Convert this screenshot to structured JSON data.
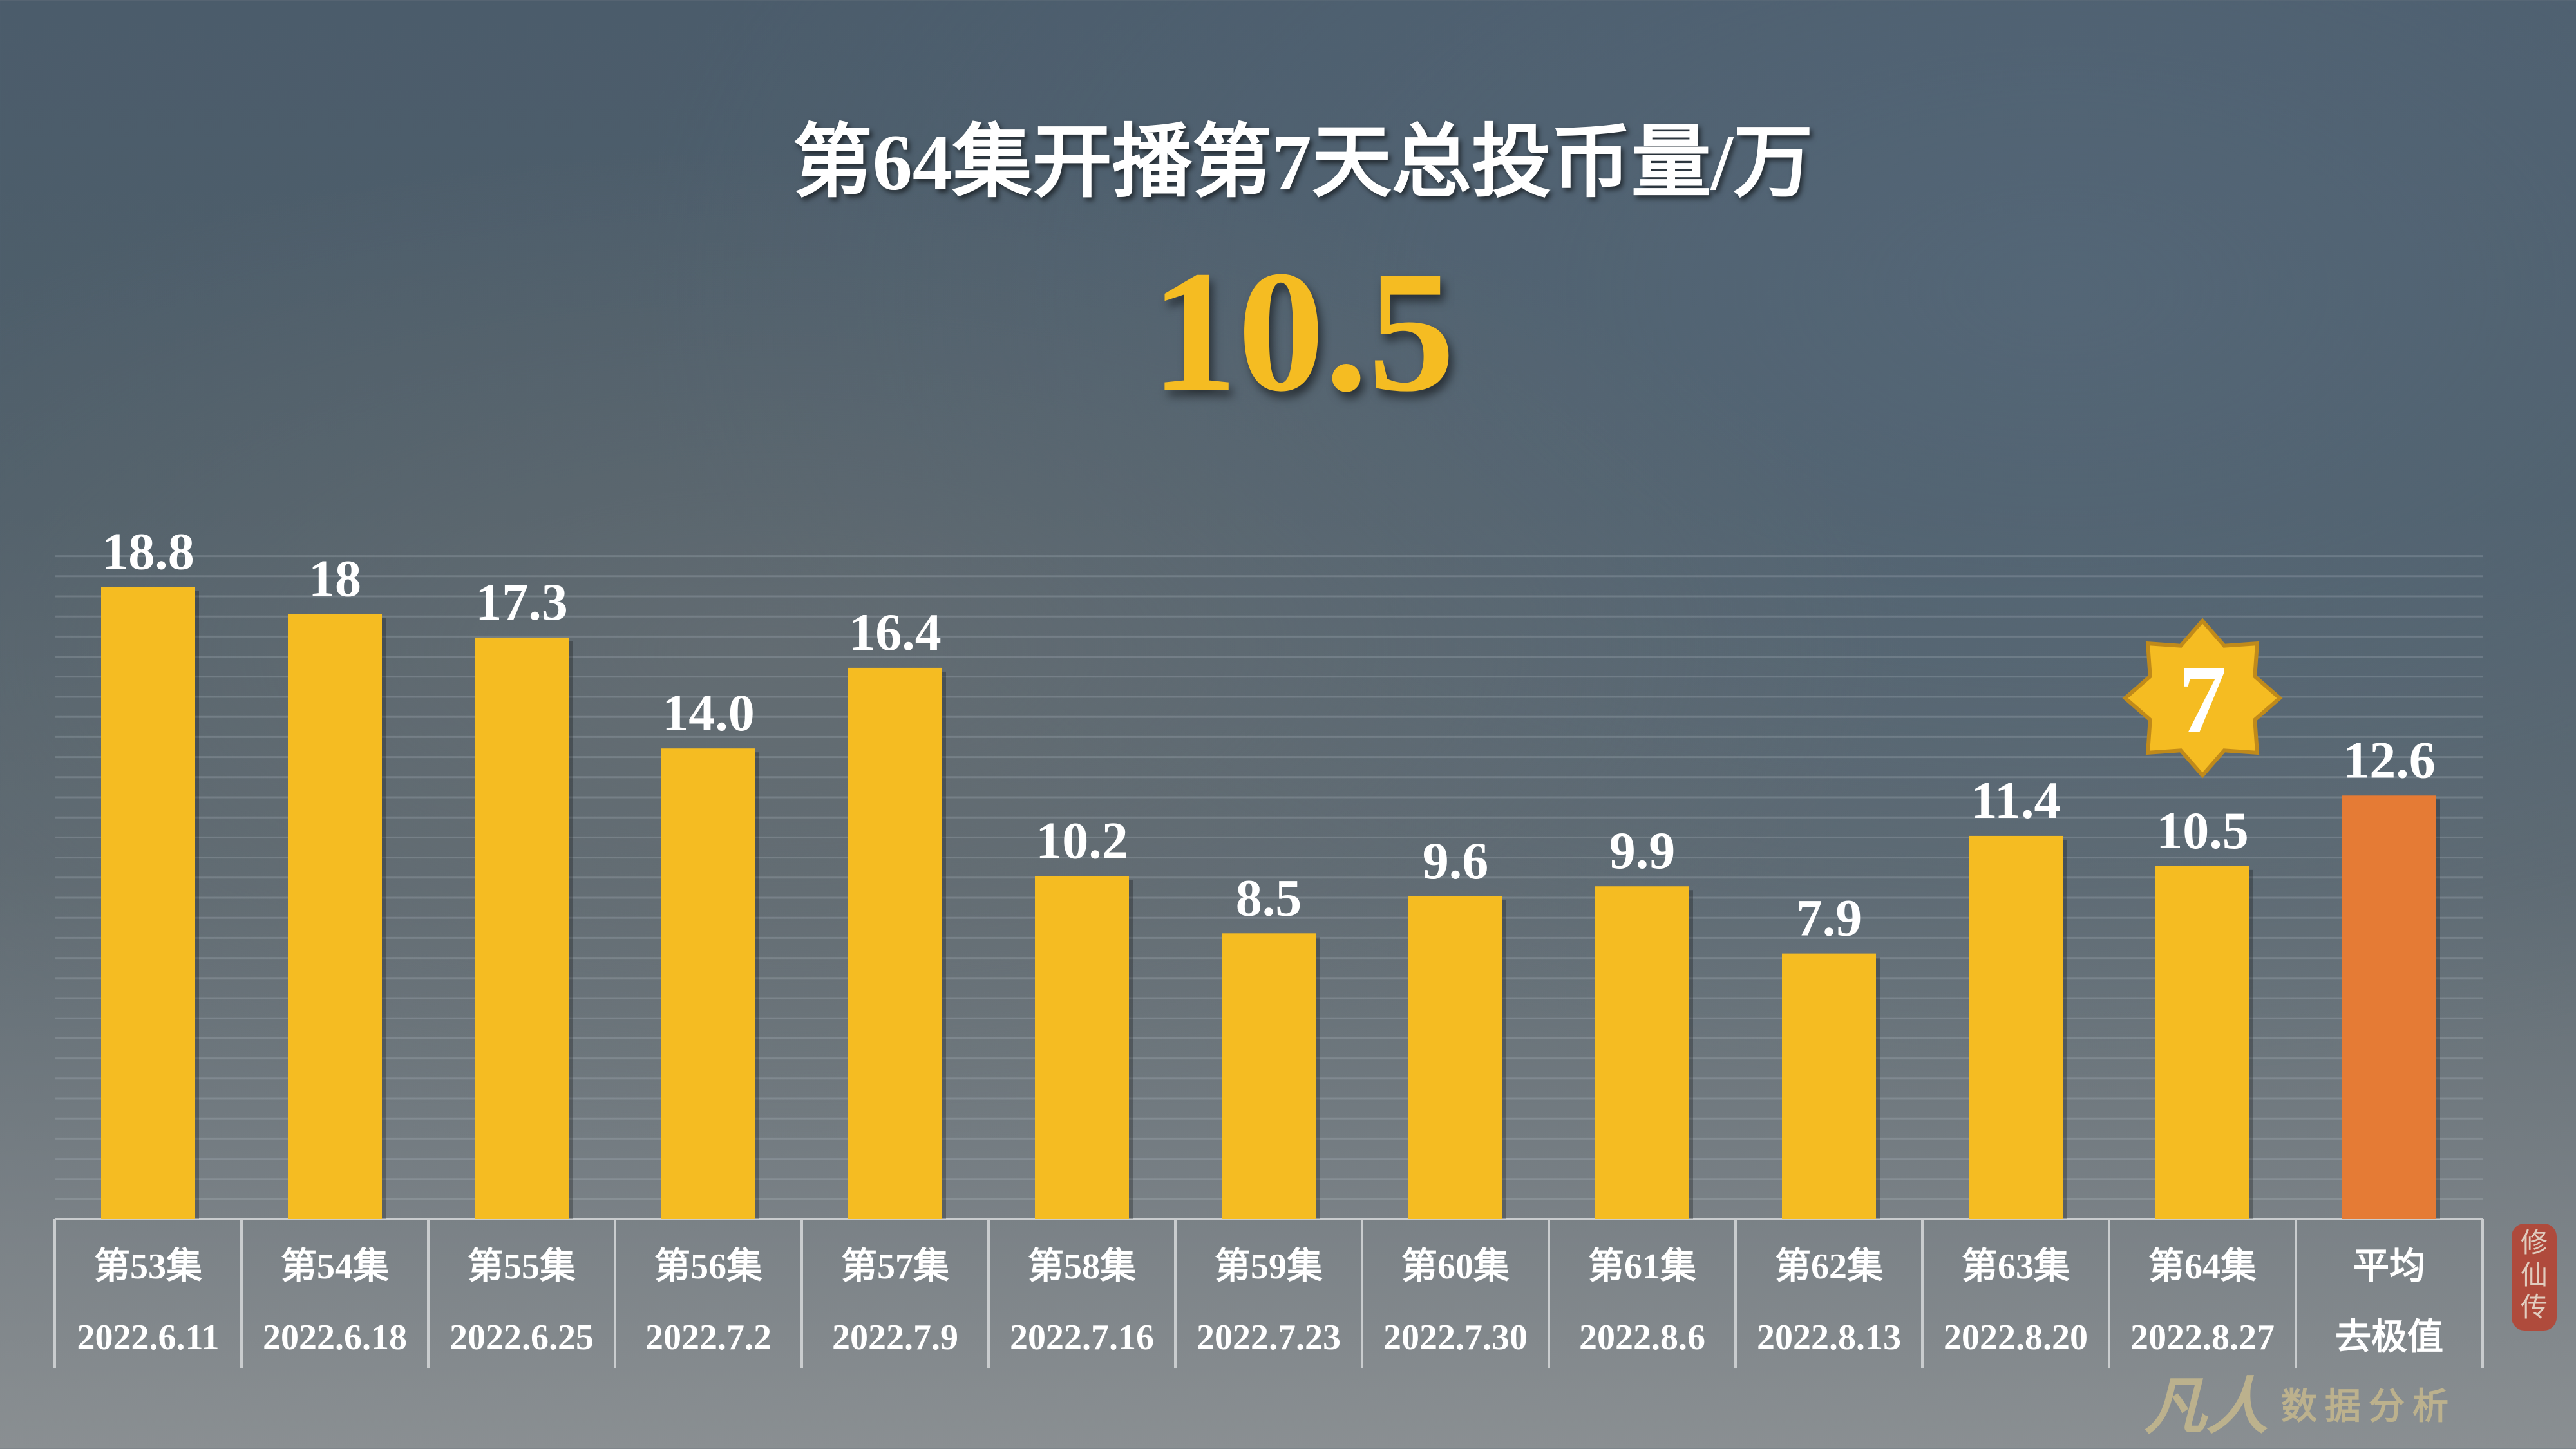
{
  "chart_data": {
    "type": "bar",
    "title": "第64集开播第7天总投币量/万",
    "highlight_value": "10.5",
    "categories": [
      "第53集",
      "第54集",
      "第55集",
      "第56集",
      "第57集",
      "第58集",
      "第59集",
      "第60集",
      "第61集",
      "第62集",
      "第63集",
      "第64集",
      "平均"
    ],
    "dates": [
      "2022.6.11",
      "2022.6.18",
      "2022.6.25",
      "2022.7.2",
      "2022.7.9",
      "2022.7.16",
      "2022.7.23",
      "2022.7.30",
      "2022.8.6",
      "2022.8.13",
      "2022.8.20",
      "2022.8.27",
      "去极值"
    ],
    "values": [
      18.8,
      18,
      17.3,
      14.0,
      16.4,
      10.2,
      8.5,
      9.6,
      9.9,
      7.9,
      11.4,
      10.5,
      12.6
    ],
    "labels": [
      "18.8",
      "18",
      "17.3",
      "14.0",
      "16.4",
      "10.2",
      "8.5",
      "9.6",
      "9.9",
      "7.9",
      "11.4",
      "10.5",
      "12.6"
    ],
    "ylim": [
      0,
      20
    ],
    "grid": true,
    "rank_badge": {
      "category": "第64集",
      "text": "7"
    },
    "colors": {
      "bar": "#f5bc22",
      "average_bar": "#e57b35",
      "label": "#ffffff",
      "badge": "#f5bc22"
    }
  },
  "watermark": {
    "logo": "凡人",
    "subtitle": "数据分析",
    "seal": "修仙传"
  }
}
